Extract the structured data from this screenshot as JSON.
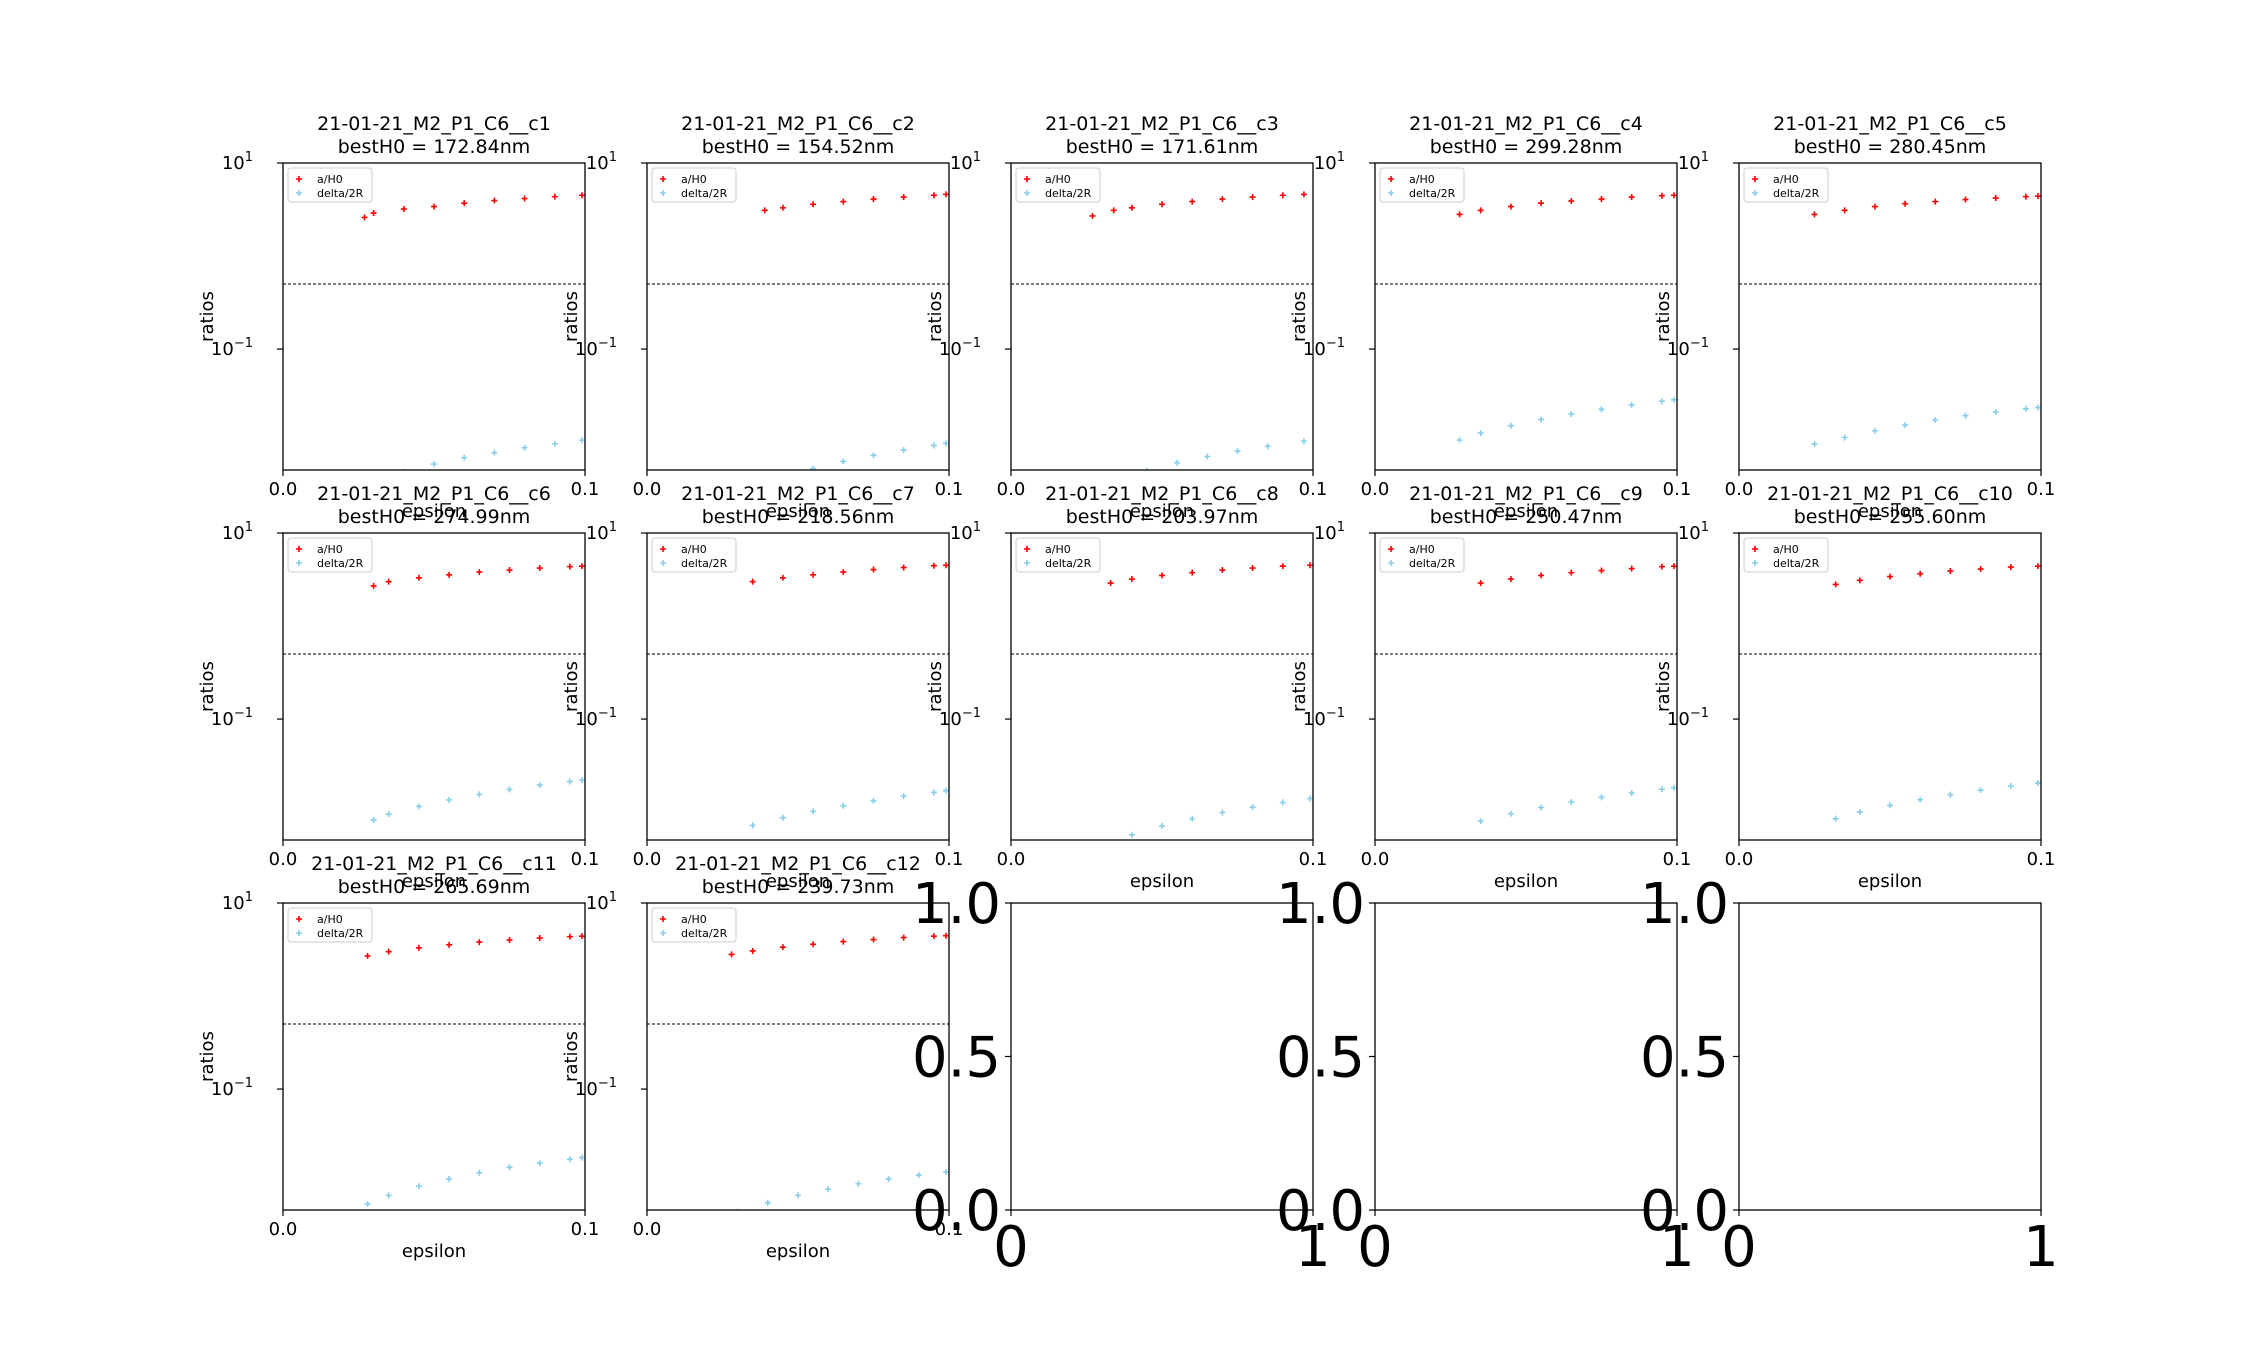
{
  "chart_data": [
    {
      "type": "scatter",
      "title": "21-01-21_M2_P1_C6__c1",
      "subtitle": "bestH0 = 172.84nm",
      "xlabel": "epsilon",
      "ylabel": "ratios",
      "xlim": [
        0,
        0.1
      ],
      "ylim_log10": [
        -2.3,
        1
      ],
      "yscale": "log",
      "hline": 0.5,
      "xticks": [
        {
          "v": 0.0,
          "label": "0.0"
        },
        {
          "v": 0.1,
          "label": "0.1"
        }
      ],
      "series": [
        {
          "name": "a/H0",
          "color": "#ff0000",
          "x": [
            0.027,
            0.03,
            0.04,
            0.05,
            0.06,
            0.07,
            0.08,
            0.09,
            0.099
          ],
          "y": [
            2.6,
            2.9,
            3.2,
            3.4,
            3.7,
            3.95,
            4.15,
            4.35,
            4.5
          ]
        },
        {
          "name": "delta/2R",
          "color": "#87ceeb",
          "x": [
            0.04,
            0.05,
            0.06,
            0.07,
            0.08,
            0.09,
            0.099
          ],
          "y": [
            0.0048,
            0.0058,
            0.0068,
            0.0077,
            0.0087,
            0.0096,
            0.0105
          ]
        }
      ]
    },
    {
      "type": "scatter",
      "title": "21-01-21_M2_P1_C6__c2",
      "subtitle": "bestH0 = 154.52nm",
      "xlabel": "epsilon",
      "ylabel": "ratios",
      "xlim": [
        0,
        0.1
      ],
      "ylim_log10": [
        -2.3,
        1
      ],
      "yscale": "log",
      "hline": 0.5,
      "xticks": [
        {
          "v": 0.0,
          "label": "0.0"
        },
        {
          "v": 0.1,
          "label": "0.1"
        }
      ],
      "series": [
        {
          "name": "a/H0",
          "color": "#ff0000",
          "x": [
            0.039,
            0.045,
            0.055,
            0.065,
            0.075,
            0.085,
            0.095,
            0.099
          ],
          "y": [
            3.1,
            3.3,
            3.6,
            3.85,
            4.1,
            4.3,
            4.5,
            4.6
          ]
        },
        {
          "name": "delta/2R",
          "color": "#87ceeb",
          "x": [
            0.055,
            0.065,
            0.075,
            0.085,
            0.095,
            0.099
          ],
          "y": [
            0.0052,
            0.0062,
            0.0072,
            0.0082,
            0.0092,
            0.0097
          ]
        }
      ]
    },
    {
      "type": "scatter",
      "title": "21-01-21_M2_P1_C6__c3",
      "subtitle": "bestH0 = 171.61nm",
      "xlabel": "epsilon",
      "ylabel": "ratios",
      "xlim": [
        0,
        0.1
      ],
      "ylim_log10": [
        -2.3,
        1
      ],
      "yscale": "log",
      "hline": 0.5,
      "xticks": [
        {
          "v": 0.0,
          "label": "0.0"
        },
        {
          "v": 0.1,
          "label": "0.1"
        }
      ],
      "series": [
        {
          "name": "a/H0",
          "color": "#ff0000",
          "x": [
            0.027,
            0.034,
            0.04,
            0.05,
            0.06,
            0.07,
            0.08,
            0.09,
            0.097
          ],
          "y": [
            2.7,
            3.1,
            3.3,
            3.6,
            3.85,
            4.1,
            4.3,
            4.5,
            4.6
          ]
        },
        {
          "name": "delta/2R",
          "color": "#87ceeb",
          "x": [
            0.045,
            0.055,
            0.065,
            0.075,
            0.085,
            0.097
          ],
          "y": [
            0.0049,
            0.006,
            0.007,
            0.008,
            0.009,
            0.0102
          ]
        }
      ]
    },
    {
      "type": "scatter",
      "title": "21-01-21_M2_P1_C6__c4",
      "subtitle": "bestH0 = 299.28nm",
      "xlabel": "epsilon",
      "ylabel": "ratios",
      "xlim": [
        0,
        0.1
      ],
      "ylim_log10": [
        -2.3,
        1
      ],
      "yscale": "log",
      "hline": 0.5,
      "xticks": [
        {
          "v": 0.0,
          "label": "0.0"
        },
        {
          "v": 0.1,
          "label": "0.1"
        }
      ],
      "series": [
        {
          "name": "a/H0",
          "color": "#ff0000",
          "x": [
            0.028,
            0.035,
            0.045,
            0.055,
            0.065,
            0.075,
            0.085,
            0.095,
            0.099
          ],
          "y": [
            2.8,
            3.1,
            3.4,
            3.7,
            3.9,
            4.1,
            4.3,
            4.45,
            4.5
          ]
        },
        {
          "name": "delta/2R",
          "color": "#87ceeb",
          "x": [
            0.028,
            0.035,
            0.045,
            0.055,
            0.065,
            0.075,
            0.085,
            0.095,
            0.099
          ],
          "y": [
            0.0105,
            0.0125,
            0.015,
            0.0175,
            0.02,
            0.0225,
            0.025,
            0.0275,
            0.0285
          ]
        }
      ]
    },
    {
      "type": "scatter",
      "title": "21-01-21_M2_P1_C6__c5",
      "subtitle": "bestH0 = 280.45nm",
      "xlabel": "epsilon",
      "ylabel": "ratios",
      "xlim": [
        0,
        0.1
      ],
      "ylim_log10": [
        -2.3,
        1
      ],
      "yscale": "log",
      "hline": 0.5,
      "xticks": [
        {
          "v": 0.0,
          "label": "0.0"
        },
        {
          "v": 0.1,
          "label": "0.1"
        }
      ],
      "series": [
        {
          "name": "a/H0",
          "color": "#ff0000",
          "x": [
            0.025,
            0.035,
            0.045,
            0.055,
            0.065,
            0.075,
            0.085,
            0.095,
            0.099
          ],
          "y": [
            2.8,
            3.1,
            3.4,
            3.65,
            3.85,
            4.05,
            4.2,
            4.35,
            4.4
          ]
        },
        {
          "name": "delta/2R",
          "color": "#87ceeb",
          "x": [
            0.025,
            0.035,
            0.045,
            0.055,
            0.065,
            0.075,
            0.085,
            0.095,
            0.099
          ],
          "y": [
            0.0095,
            0.0112,
            0.0132,
            0.0152,
            0.0172,
            0.0192,
            0.021,
            0.0228,
            0.0235
          ]
        }
      ]
    },
    {
      "type": "scatter",
      "title": "21-01-21_M2_P1_C6__c6",
      "subtitle": "bestH0 = 274.99nm",
      "xlabel": "epsilon",
      "ylabel": "ratios",
      "xlim": [
        0,
        0.1
      ],
      "ylim_log10": [
        -2.3,
        1
      ],
      "yscale": "log",
      "hline": 0.5,
      "xticks": [
        {
          "v": 0.0,
          "label": "0.0"
        },
        {
          "v": 0.1,
          "label": "0.1"
        }
      ],
      "series": [
        {
          "name": "a/H0",
          "color": "#ff0000",
          "x": [
            0.03,
            0.035,
            0.045,
            0.055,
            0.065,
            0.075,
            0.085,
            0.095,
            0.099
          ],
          "y": [
            2.7,
            3.0,
            3.3,
            3.55,
            3.8,
            4.0,
            4.2,
            4.35,
            4.4
          ]
        },
        {
          "name": "delta/2R",
          "color": "#87ceeb",
          "x": [
            0.03,
            0.035,
            0.045,
            0.055,
            0.065,
            0.075,
            0.085,
            0.095,
            0.099
          ],
          "y": [
            0.0082,
            0.0095,
            0.0115,
            0.0135,
            0.0155,
            0.0175,
            0.0195,
            0.0213,
            0.022
          ]
        }
      ]
    },
    {
      "type": "scatter",
      "title": "21-01-21_M2_P1_C6__c7",
      "subtitle": "bestH0 = 218.56nm",
      "xlabel": "epsilon",
      "ylabel": "ratios",
      "xlim": [
        0,
        0.1
      ],
      "ylim_log10": [
        -2.3,
        1
      ],
      "yscale": "log",
      "hline": 0.5,
      "xticks": [
        {
          "v": 0.0,
          "label": "0.0"
        },
        {
          "v": 0.1,
          "label": "0.1"
        }
      ],
      "series": [
        {
          "name": "a/H0",
          "color": "#ff0000",
          "x": [
            0.035,
            0.045,
            0.055,
            0.065,
            0.075,
            0.085,
            0.095,
            0.099
          ],
          "y": [
            3.0,
            3.3,
            3.55,
            3.8,
            4.05,
            4.25,
            4.45,
            4.5
          ]
        },
        {
          "name": "delta/2R",
          "color": "#87ceeb",
          "x": [
            0.035,
            0.045,
            0.055,
            0.065,
            0.075,
            0.085,
            0.095,
            0.099
          ],
          "y": [
            0.0072,
            0.0087,
            0.0102,
            0.0117,
            0.0132,
            0.0148,
            0.0163,
            0.017
          ]
        }
      ]
    },
    {
      "type": "scatter",
      "title": "21-01-21_M2_P1_C6__c8",
      "subtitle": "bestH0 = 203.97nm",
      "xlabel": "epsilon",
      "ylabel": "ratios",
      "xlim": [
        0,
        0.1
      ],
      "ylim_log10": [
        -2.3,
        1
      ],
      "yscale": "log",
      "hline": 0.5,
      "xticks": [
        {
          "v": 0.0,
          "label": "0.0"
        },
        {
          "v": 0.1,
          "label": "0.1"
        }
      ],
      "series": [
        {
          "name": "a/H0",
          "color": "#ff0000",
          "x": [
            0.033,
            0.04,
            0.05,
            0.06,
            0.07,
            0.08,
            0.09,
            0.099
          ],
          "y": [
            2.9,
            3.2,
            3.5,
            3.75,
            4.0,
            4.2,
            4.4,
            4.5
          ]
        },
        {
          "name": "delta/2R",
          "color": "#87ceeb",
          "x": [
            0.04,
            0.05,
            0.06,
            0.07,
            0.08,
            0.09,
            0.099
          ],
          "y": [
            0.0057,
            0.0071,
            0.0085,
            0.0099,
            0.0113,
            0.0127,
            0.014
          ]
        }
      ]
    },
    {
      "type": "scatter",
      "title": "21-01-21_M2_P1_C6__c9",
      "subtitle": "bestH0 = 250.47nm",
      "xlabel": "epsilon",
      "ylabel": "ratios",
      "xlim": [
        0,
        0.1
      ],
      "ylim_log10": [
        -2.3,
        1
      ],
      "yscale": "log",
      "hline": 0.5,
      "xticks": [
        {
          "v": 0.0,
          "label": "0.0"
        },
        {
          "v": 0.1,
          "label": "0.1"
        }
      ],
      "series": [
        {
          "name": "a/H0",
          "color": "#ff0000",
          "x": [
            0.035,
            0.045,
            0.055,
            0.065,
            0.075,
            0.085,
            0.095,
            0.099
          ],
          "y": [
            2.9,
            3.2,
            3.5,
            3.75,
            3.95,
            4.15,
            4.35,
            4.4
          ]
        },
        {
          "name": "delta/2R",
          "color": "#87ceeb",
          "x": [
            0.035,
            0.045,
            0.055,
            0.065,
            0.075,
            0.085,
            0.095,
            0.099
          ],
          "y": [
            0.008,
            0.0096,
            0.0112,
            0.0128,
            0.0144,
            0.016,
            0.0176,
            0.0183
          ]
        }
      ]
    },
    {
      "type": "scatter",
      "title": "21-01-21_M2_P1_C6__c10",
      "subtitle": "bestH0 = 255.60nm",
      "xlabel": "epsilon",
      "ylabel": "ratios",
      "xlim": [
        0,
        0.1
      ],
      "ylim_log10": [
        -2.3,
        1
      ],
      "yscale": "log",
      "hline": 0.5,
      "xticks": [
        {
          "v": 0.0,
          "label": "0.0"
        },
        {
          "v": 0.1,
          "label": "0.1"
        }
      ],
      "series": [
        {
          "name": "a/H0",
          "color": "#ff0000",
          "x": [
            0.032,
            0.04,
            0.05,
            0.06,
            0.07,
            0.08,
            0.09,
            0.099
          ],
          "y": [
            2.8,
            3.1,
            3.4,
            3.65,
            3.9,
            4.1,
            4.3,
            4.4
          ]
        },
        {
          "name": "delta/2R",
          "color": "#87ceeb",
          "x": [
            0.032,
            0.04,
            0.05,
            0.06,
            0.07,
            0.08,
            0.09,
            0.099
          ],
          "y": [
            0.0085,
            0.01,
            0.0118,
            0.0136,
            0.0154,
            0.0172,
            0.019,
            0.0205
          ]
        }
      ]
    },
    {
      "type": "scatter",
      "title": "21-01-21_M2_P1_C6__c11",
      "subtitle": "bestH0 = 265.69nm",
      "xlabel": "epsilon",
      "ylabel": "ratios",
      "xlim": [
        0,
        0.1
      ],
      "ylim_log10": [
        -2.3,
        1
      ],
      "yscale": "log",
      "hline": 0.5,
      "xticks": [
        {
          "v": 0.0,
          "label": "0.0"
        },
        {
          "v": 0.1,
          "label": "0.1"
        }
      ],
      "series": [
        {
          "name": "a/H0",
          "color": "#ff0000",
          "x": [
            0.028,
            0.035,
            0.045,
            0.055,
            0.065,
            0.075,
            0.085,
            0.095,
            0.099
          ],
          "y": [
            2.7,
            3.0,
            3.3,
            3.55,
            3.8,
            4.0,
            4.2,
            4.35,
            4.4
          ]
        },
        {
          "name": "delta/2R",
          "color": "#87ceeb",
          "x": [
            0.028,
            0.035,
            0.045,
            0.055,
            0.065,
            0.075,
            0.085,
            0.095,
            0.099
          ],
          "y": [
            0.0058,
            0.0072,
            0.009,
            0.0108,
            0.0126,
            0.0144,
            0.016,
            0.0176,
            0.0183
          ]
        }
      ]
    },
    {
      "type": "scatter",
      "title": "21-01-21_M2_P1_C6__c12",
      "subtitle": "bestH0 = 239.73nm",
      "xlabel": "epsilon",
      "ylabel": "ratios",
      "xlim": [
        0,
        0.1
      ],
      "ylim_log10": [
        -2.3,
        1
      ],
      "yscale": "log",
      "hline": 0.5,
      "xticks": [
        {
          "v": 0.0,
          "label": "0.0"
        },
        {
          "v": 0.1,
          "label": "0.1"
        }
      ],
      "series": [
        {
          "name": "a/H0",
          "color": "#ff0000",
          "x": [
            0.028,
            0.035,
            0.045,
            0.055,
            0.065,
            0.075,
            0.085,
            0.095,
            0.099
          ],
          "y": [
            2.8,
            3.05,
            3.35,
            3.6,
            3.85,
            4.05,
            4.25,
            4.4,
            4.45
          ]
        },
        {
          "name": "delta/2R",
          "color": "#87ceeb",
          "x": [
            0.03,
            0.04,
            0.05,
            0.06,
            0.07,
            0.08,
            0.09,
            0.099
          ],
          "y": [
            0.0048,
            0.006,
            0.0072,
            0.0084,
            0.0096,
            0.0108,
            0.0119,
            0.0128
          ]
        }
      ]
    }
  ],
  "empty_axes": {
    "count": 3,
    "xticks": [
      {
        "v": 0,
        "label": "0"
      },
      {
        "v": 1,
        "label": "1"
      }
    ],
    "yticks": [
      {
        "v": 0.0,
        "label": "0.0"
      },
      {
        "v": 0.5,
        "label": "0.5"
      },
      {
        "v": 1.0,
        "label": "1.0"
      }
    ]
  },
  "ytick_labels": {
    "base": "10",
    "top_exp": "1",
    "mid_exp": "−1"
  }
}
